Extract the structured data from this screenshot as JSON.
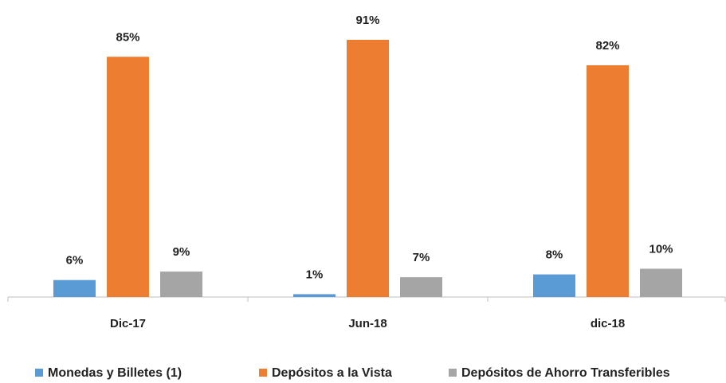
{
  "chart_data": {
    "type": "bar",
    "categories": [
      "Dic-17",
      "Jun-18",
      "dic-18"
    ],
    "series": [
      {
        "name": "Monedas y Billetes (1)",
        "color": "#5b9bd5",
        "values": [
          6,
          1,
          8
        ],
        "value_labels": [
          "6%",
          "1%",
          "8%"
        ]
      },
      {
        "name": "Depósitos a la Vista",
        "color": "#ed7d31",
        "values": [
          85,
          91,
          82
        ],
        "value_labels": [
          "85%",
          "91%",
          "82%"
        ]
      },
      {
        "name": "Depósitos de Ahorro Transferibles",
        "color": "#a5a5a5",
        "values": [
          9,
          7,
          10
        ],
        "value_labels": [
          "9%",
          "7%",
          "10%"
        ]
      }
    ],
    "legend": "bottom"
  }
}
